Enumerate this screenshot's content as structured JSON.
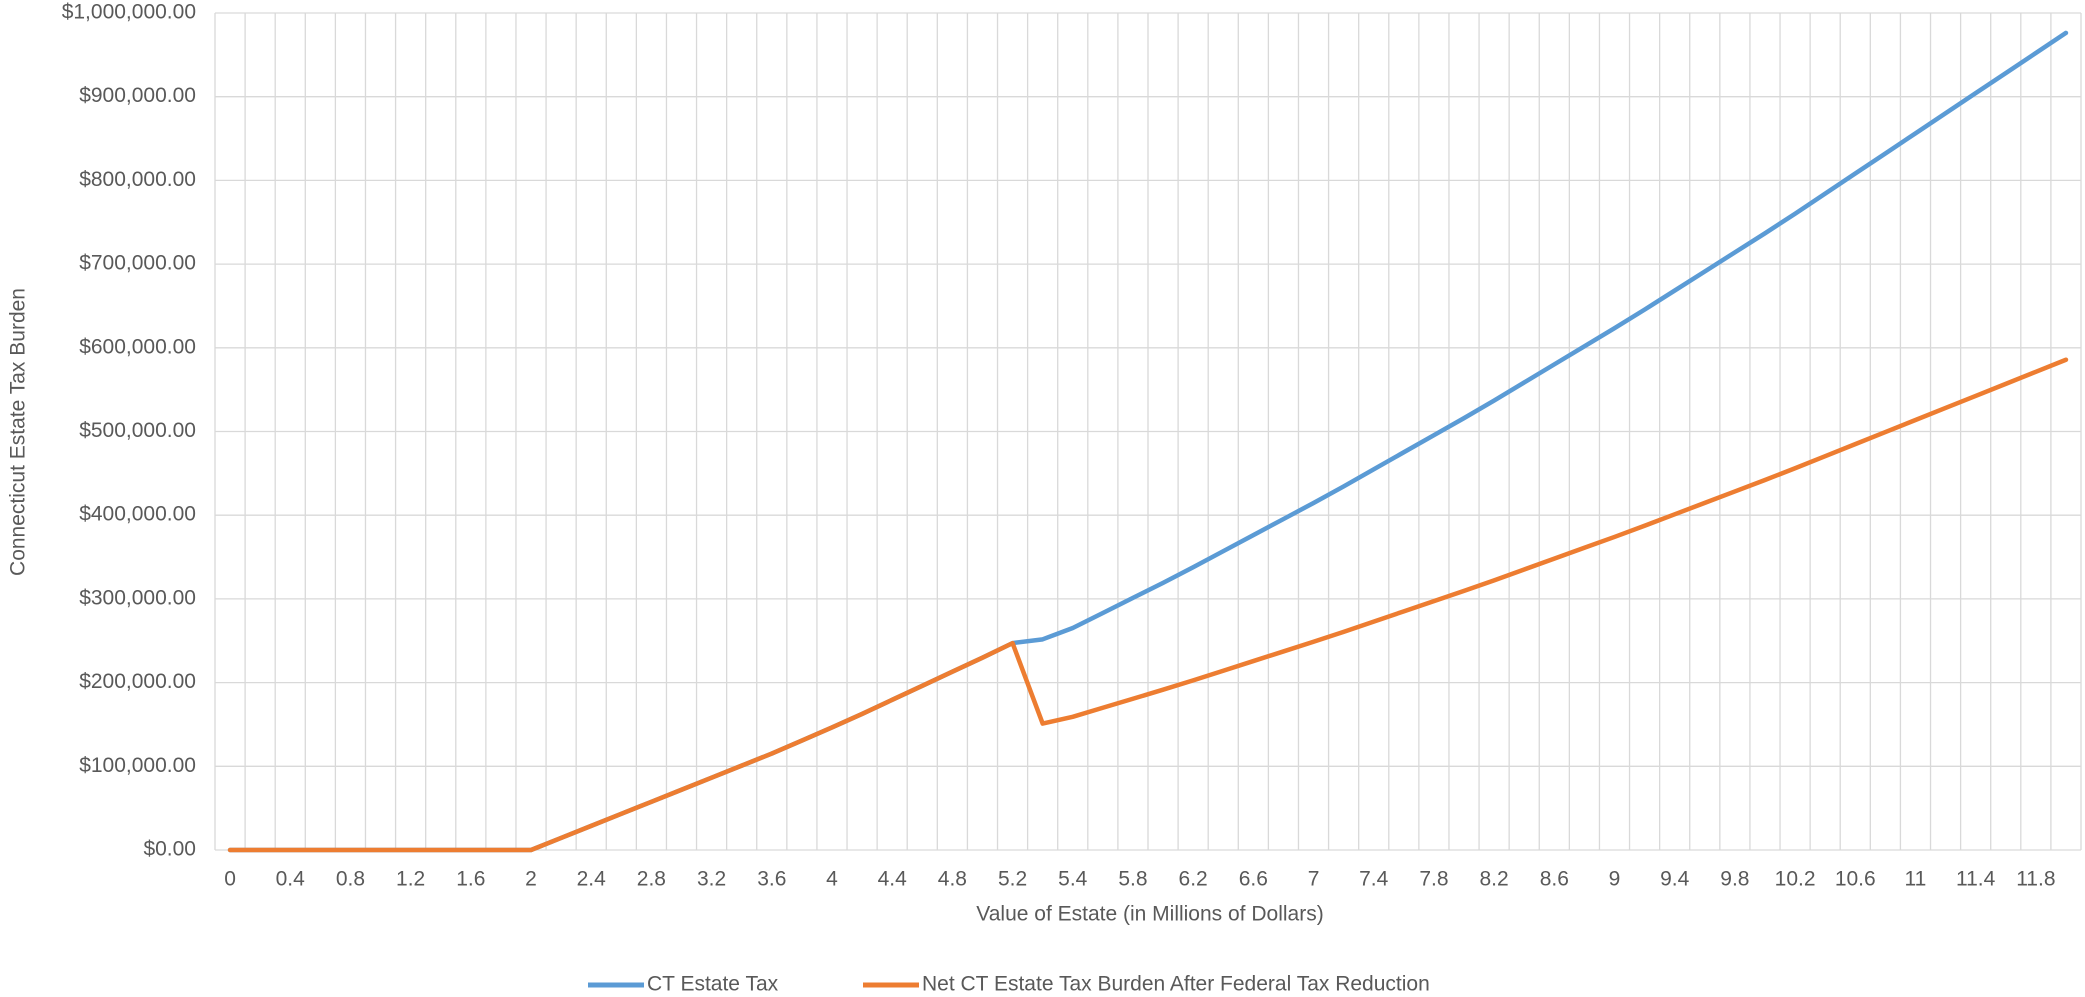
{
  "chart_data": {
    "type": "line",
    "x_label": "Value of Estate (in Millions of Dollars)",
    "y_label": "Connecticut Estate Tax Burden",
    "categories": [
      "0",
      null,
      "0.4",
      null,
      "0.8",
      null,
      "1.2",
      null,
      "1.6",
      null,
      "2",
      null,
      "2.4",
      null,
      "2.8",
      null,
      "3.2",
      null,
      "3.6",
      null,
      "4",
      null,
      "4.4",
      null,
      "4.8",
      null,
      "5.2",
      null,
      "5.4",
      null,
      "5.8",
      null,
      "6.2",
      null,
      "6.6",
      null,
      "7",
      null,
      "7.4",
      null,
      "7.8",
      null,
      "8.2",
      null,
      "8.6",
      null,
      "9",
      null,
      "9.4",
      null,
      "9.8",
      null,
      "10.2",
      null,
      "10.6",
      null,
      "11",
      null,
      "11.4",
      null,
      "11.8",
      null
    ],
    "series": [
      {
        "name": "CT Estate Tax",
        "color": "#5b9bd5",
        "values": [
          0,
          0,
          0,
          0,
          0,
          0,
          0,
          0,
          0,
          0,
          0,
          14400,
          28800,
          43200,
          57600,
          72000,
          86400,
          100800,
          115200,
          130800,
          146400,
          162600,
          179400,
          196200,
          213000,
          229800,
          247200,
          251700,
          265200,
          283200,
          301200,
          319200,
          337800,
          357000,
          376200,
          395400,
          414600,
          434400,
          454800,
          475200,
          495600,
          516000,
          537000,
          558600,
          580200,
          601800,
          623400,
          645600,
          668400,
          691200,
          714000,
          736800,
          760200,
          784200,
          808200,
          832200,
          856200,
          880200,
          904200,
          928200,
          952200,
          976200
        ]
      },
      {
        "name": "Net CT Estate Tax Burden After Federal Tax Reduction",
        "color": "#ed7d31",
        "values": [
          0,
          0,
          0,
          0,
          0,
          0,
          0,
          0,
          0,
          0,
          0,
          14400,
          28800,
          43200,
          57600,
          72000,
          86400,
          100800,
          115200,
          130800,
          146400,
          162600,
          179400,
          196200,
          213000,
          229800,
          247200,
          151020,
          159120,
          169920,
          180720,
          191520,
          202680,
          214200,
          225720,
          237240,
          248760,
          260640,
          272880,
          285120,
          297360,
          309600,
          322200,
          335160,
          348120,
          361080,
          374040,
          387360,
          401040,
          414720,
          428400,
          442080,
          456120,
          470520,
          484920,
          499320,
          513720,
          528120,
          542520,
          556920,
          571320,
          585720
        ]
      }
    ],
    "ylim": [
      0,
      1000000
    ],
    "yticks": [
      {
        "value": 0,
        "label": "$0.00"
      },
      {
        "value": 100000,
        "label": "$100,000.00"
      },
      {
        "value": 200000,
        "label": "$200,000.00"
      },
      {
        "value": 300000,
        "label": "$300,000.00"
      },
      {
        "value": 400000,
        "label": "$400,000.00"
      },
      {
        "value": 500000,
        "label": "$500,000.00"
      },
      {
        "value": 600000,
        "label": "$600,000.00"
      },
      {
        "value": 700000,
        "label": "$700,000.00"
      },
      {
        "value": 800000,
        "label": "$800,000.00"
      },
      {
        "value": 900000,
        "label": "$900,000.00"
      },
      {
        "value": 1000000,
        "label": "$1,000,000.00"
      }
    ],
    "grid": true,
    "legend": "bottom"
  }
}
